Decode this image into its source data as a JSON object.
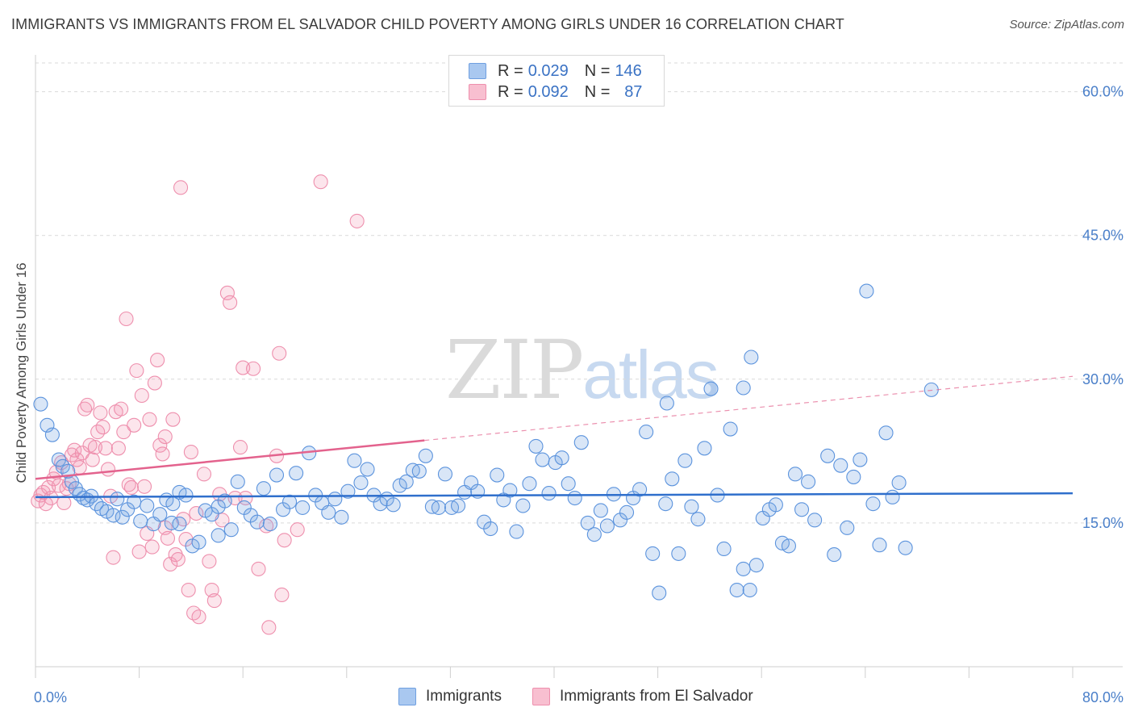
{
  "header": {
    "title": "IMMIGRANTS VS IMMIGRANTS FROM EL SALVADOR CHILD POVERTY AMONG GIRLS UNDER 16 CORRELATION CHART",
    "source": "Source: ZipAtlas.com"
  },
  "watermark": {
    "zip": "ZIP",
    "atlas": "atlas"
  },
  "legend": {
    "r_label": "R =",
    "n_label": "N =",
    "rows": [
      {
        "r": "0.029",
        "n": "146",
        "color": "#a9c8f0",
        "border": "#6f9fe0"
      },
      {
        "r": "0.092",
        "n": "87",
        "color": "#f8bfd0",
        "border": "#ee8fad"
      }
    ]
  },
  "bottom_legend": [
    "Immigrants",
    "Immigrants from El Salvador"
  ],
  "colors": {
    "blue_fill": "rgba(120,165,225,0.28)",
    "blue_stroke": "#5b93dd",
    "blue_line": "#2f6fcc",
    "pink_fill": "rgba(245,150,180,0.25)",
    "pink_stroke": "#ee8fad",
    "pink_line": "#e3628d",
    "grid": "#d9d9d9",
    "tick_text": "#4a7fc9"
  },
  "chart_data": {
    "type": "scatter",
    "title": "IMMIGRANTS VS IMMIGRANTS FROM EL SALVADOR CHILD POVERTY AMONG GIRLS UNDER 16 CORRELATION CHART",
    "xlabel": "",
    "ylabel": "Child Poverty Among Girls Under 16",
    "xlim": [
      0,
      80
    ],
    "ylim": [
      0,
      63
    ],
    "x_tick_labels": [
      "0.0%",
      "80.0%"
    ],
    "y_ticks": [
      15,
      30,
      45,
      60
    ],
    "y_tick_labels": [
      "15.0%",
      "30.0%",
      "45.0%",
      "60.0%"
    ],
    "grid": true,
    "legend_position": "top-center",
    "series": [
      {
        "name": "Immigrants",
        "R": 0.029,
        "N": 146,
        "trend": {
          "x": [
            0,
            80
          ],
          "y": [
            17.7,
            18.1
          ],
          "dashed_from": null
        },
        "points": [
          [
            0.4,
            27.4
          ],
          [
            0.9,
            25.2
          ],
          [
            1.3,
            24.2
          ],
          [
            1.8,
            21.6
          ],
          [
            2.1,
            20.9
          ],
          [
            2.5,
            20.4
          ],
          [
            2.8,
            19.3
          ],
          [
            3.1,
            18.6
          ],
          [
            3.4,
            18.0
          ],
          [
            3.7,
            17.6
          ],
          [
            4.0,
            17.4
          ],
          [
            4.3,
            17.8
          ],
          [
            4.7,
            17.0
          ],
          [
            5.1,
            16.5
          ],
          [
            5.5,
            16.2
          ],
          [
            6.0,
            15.8
          ],
          [
            6.3,
            17.5
          ],
          [
            6.7,
            15.6
          ],
          [
            7.1,
            16.4
          ],
          [
            7.6,
            17.2
          ],
          [
            8.1,
            15.2
          ],
          [
            8.6,
            16.8
          ],
          [
            9.1,
            14.9
          ],
          [
            9.6,
            15.9
          ],
          [
            10.1,
            17.4
          ],
          [
            10.5,
            15.0
          ],
          [
            11.1,
            18.2
          ],
          [
            11.6,
            17.9
          ],
          [
            12.1,
            12.6
          ],
          [
            12.6,
            13.0
          ],
          [
            13.1,
            16.3
          ],
          [
            13.6,
            15.9
          ],
          [
            14.1,
            16.7
          ],
          [
            14.6,
            17.3
          ],
          [
            15.1,
            14.3
          ],
          [
            15.6,
            19.3
          ],
          [
            16.1,
            16.6
          ],
          [
            16.6,
            15.8
          ],
          [
            17.1,
            15.1
          ],
          [
            17.6,
            18.6
          ],
          [
            18.1,
            14.9
          ],
          [
            18.6,
            20.0
          ],
          [
            19.1,
            16.4
          ],
          [
            19.6,
            17.2
          ],
          [
            20.1,
            20.2
          ],
          [
            20.6,
            16.6
          ],
          [
            21.1,
            22.3
          ],
          [
            21.6,
            17.9
          ],
          [
            22.1,
            17.1
          ],
          [
            22.6,
            16.1
          ],
          [
            23.1,
            17.5
          ],
          [
            23.6,
            15.6
          ],
          [
            24.1,
            18.3
          ],
          [
            24.6,
            21.5
          ],
          [
            25.1,
            19.2
          ],
          [
            25.6,
            20.6
          ],
          [
            26.1,
            17.9
          ],
          [
            26.6,
            17.0
          ],
          [
            27.1,
            17.5
          ],
          [
            27.6,
            16.9
          ],
          [
            28.1,
            18.9
          ],
          [
            28.6,
            19.3
          ],
          [
            29.1,
            20.5
          ],
          [
            29.6,
            20.4
          ],
          [
            30.1,
            22.0
          ],
          [
            30.6,
            16.7
          ],
          [
            31.1,
            16.6
          ],
          [
            31.6,
            20.1
          ],
          [
            32.1,
            16.6
          ],
          [
            32.6,
            16.8
          ],
          [
            33.1,
            18.2
          ],
          [
            33.6,
            19.2
          ],
          [
            34.1,
            18.3
          ],
          [
            34.6,
            15.1
          ],
          [
            35.1,
            14.4
          ],
          [
            35.6,
            20.0
          ],
          [
            36.1,
            17.4
          ],
          [
            36.6,
            18.4
          ],
          [
            37.1,
            14.1
          ],
          [
            37.6,
            16.8
          ],
          [
            38.1,
            19.1
          ],
          [
            38.6,
            23.0
          ],
          [
            39.1,
            21.6
          ],
          [
            39.6,
            18.1
          ],
          [
            40.1,
            21.3
          ],
          [
            40.6,
            21.8
          ],
          [
            41.1,
            19.1
          ],
          [
            41.6,
            17.6
          ],
          [
            42.1,
            23.4
          ],
          [
            42.6,
            15.0
          ],
          [
            43.1,
            13.8
          ],
          [
            43.6,
            16.3
          ],
          [
            44.1,
            14.7
          ],
          [
            44.6,
            18.0
          ],
          [
            45.1,
            15.3
          ],
          [
            45.6,
            16.1
          ],
          [
            46.1,
            17.6
          ],
          [
            46.6,
            18.5
          ],
          [
            47.1,
            24.5
          ],
          [
            47.6,
            11.8
          ],
          [
            48.1,
            7.7
          ],
          [
            48.6,
            17.0
          ],
          [
            49.1,
            19.6
          ],
          [
            49.6,
            11.8
          ],
          [
            50.1,
            21.5
          ],
          [
            50.6,
            16.7
          ],
          [
            51.1,
            15.4
          ],
          [
            51.6,
            22.8
          ],
          [
            52.1,
            29.0
          ],
          [
            52.6,
            17.9
          ],
          [
            53.1,
            12.3
          ],
          [
            53.6,
            24.8
          ],
          [
            54.1,
            8.0
          ],
          [
            54.6,
            10.2
          ],
          [
            55.1,
            8.0
          ],
          [
            55.6,
            10.6
          ],
          [
            56.1,
            15.5
          ],
          [
            56.6,
            16.4
          ],
          [
            57.1,
            16.9
          ],
          [
            57.6,
            12.9
          ],
          [
            58.1,
            12.6
          ],
          [
            58.6,
            20.1
          ],
          [
            59.1,
            16.4
          ],
          [
            59.6,
            19.3
          ],
          [
            60.1,
            15.3
          ],
          [
            61.1,
            22.0
          ],
          [
            61.6,
            11.7
          ],
          [
            62.1,
            21.0
          ],
          [
            62.6,
            14.5
          ],
          [
            63.1,
            19.8
          ],
          [
            63.6,
            21.6
          ],
          [
            64.1,
            39.2
          ],
          [
            64.6,
            17.0
          ],
          [
            65.1,
            12.7
          ],
          [
            65.6,
            24.4
          ],
          [
            66.1,
            17.7
          ],
          [
            66.6,
            19.2
          ],
          [
            67.1,
            12.4
          ],
          [
            69.1,
            28.9
          ],
          [
            48.7,
            27.5
          ],
          [
            55.2,
            32.3
          ],
          [
            54.6,
            29.1
          ],
          [
            10.6,
            17.0
          ],
          [
            14.1,
            13.7
          ],
          [
            11.1,
            14.9
          ]
        ]
      },
      {
        "name": "Immigrants from El Salvador",
        "R": 0.092,
        "N": 87,
        "trend": {
          "x": [
            0,
            80
          ],
          "y": [
            19.6,
            30.3
          ],
          "solid_to_x": 30
        },
        "points": [
          [
            0.2,
            17.3
          ],
          [
            0.4,
            17.9
          ],
          [
            0.6,
            18.2
          ],
          [
            0.8,
            17.0
          ],
          [
            1.0,
            18.7
          ],
          [
            1.2,
            17.6
          ],
          [
            1.4,
            19.6
          ],
          [
            1.6,
            20.3
          ],
          [
            1.8,
            18.9
          ],
          [
            2.0,
            21.3
          ],
          [
            2.2,
            17.1
          ],
          [
            2.4,
            18.6
          ],
          [
            2.6,
            19.1
          ],
          [
            2.8,
            22.1
          ],
          [
            3.0,
            22.6
          ],
          [
            3.2,
            21.6
          ],
          [
            3.4,
            20.8
          ],
          [
            3.6,
            22.3
          ],
          [
            3.8,
            26.9
          ],
          [
            4.0,
            27.3
          ],
          [
            4.2,
            23.1
          ],
          [
            4.4,
            21.6
          ],
          [
            4.6,
            22.9
          ],
          [
            4.8,
            24.5
          ],
          [
            5.0,
            26.5
          ],
          [
            5.2,
            25.0
          ],
          [
            5.4,
            22.8
          ],
          [
            5.6,
            20.6
          ],
          [
            5.8,
            17.8
          ],
          [
            6.0,
            11.4
          ],
          [
            6.2,
            26.6
          ],
          [
            6.4,
            22.8
          ],
          [
            6.6,
            26.9
          ],
          [
            6.8,
            24.5
          ],
          [
            7.0,
            36.3
          ],
          [
            7.2,
            19.0
          ],
          [
            7.4,
            18.7
          ],
          [
            7.6,
            25.2
          ],
          [
            7.8,
            30.9
          ],
          [
            8.0,
            12.0
          ],
          [
            8.2,
            28.3
          ],
          [
            8.4,
            18.8
          ],
          [
            8.6,
            13.9
          ],
          [
            8.8,
            25.8
          ],
          [
            9.0,
            12.5
          ],
          [
            9.2,
            29.6
          ],
          [
            9.4,
            32.0
          ],
          [
            9.6,
            23.1
          ],
          [
            9.8,
            22.2
          ],
          [
            10.0,
            14.5
          ],
          [
            10.2,
            13.4
          ],
          [
            10.4,
            10.7
          ],
          [
            10.6,
            25.8
          ],
          [
            10.8,
            11.7
          ],
          [
            11.0,
            11.2
          ],
          [
            11.2,
            50.0
          ],
          [
            11.4,
            15.4
          ],
          [
            11.6,
            13.3
          ],
          [
            11.8,
            8.0
          ],
          [
            12.0,
            22.4
          ],
          [
            12.2,
            5.6
          ],
          [
            12.4,
            16.0
          ],
          [
            12.6,
            5.2
          ],
          [
            13.0,
            20.1
          ],
          [
            13.4,
            11.0
          ],
          [
            13.6,
            8.0
          ],
          [
            13.8,
            6.9
          ],
          [
            14.2,
            18.0
          ],
          [
            14.4,
            15.3
          ],
          [
            14.8,
            39.0
          ],
          [
            15.0,
            38.0
          ],
          [
            15.4,
            17.6
          ],
          [
            15.8,
            22.9
          ],
          [
            16.0,
            31.2
          ],
          [
            16.2,
            17.6
          ],
          [
            16.8,
            31.1
          ],
          [
            17.2,
            10.2
          ],
          [
            17.8,
            14.7
          ],
          [
            18.0,
            4.1
          ],
          [
            18.6,
            22.0
          ],
          [
            18.8,
            32.7
          ],
          [
            19.2,
            13.2
          ],
          [
            20.2,
            14.3
          ],
          [
            19.0,
            7.5
          ],
          [
            22.0,
            50.6
          ],
          [
            24.8,
            46.5
          ],
          [
            10.0,
            24.0
          ]
        ]
      }
    ]
  }
}
